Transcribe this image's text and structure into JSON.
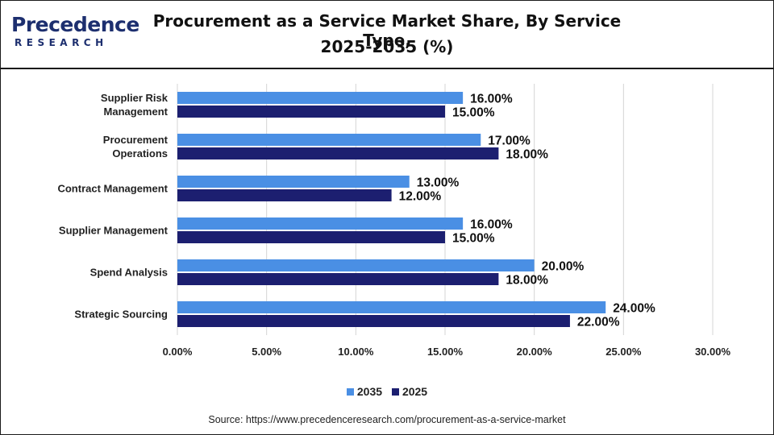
{
  "brand": {
    "name": "Precedence",
    "sub": "RESEARCH"
  },
  "title_line1": "Procurement as a Service Market Share, By Service Type,",
  "title_line2": "2025-2035 (%)",
  "source": "Source: https://www.precedenceresearch.com/procurement-as-a-service-market",
  "colors": {
    "series_2035": "#4a8fe4",
    "series_2025": "#1c1f70",
    "grid": "#d4d4d4",
    "text": "#222222"
  },
  "chart_data": {
    "type": "bar",
    "orientation": "horizontal",
    "categories": [
      [
        "Supplier Risk",
        "Management"
      ],
      [
        "Procurement",
        "Operations"
      ],
      [
        "Contract Management"
      ],
      [
        "Supplier Management"
      ],
      [
        "Spend Analysis"
      ],
      [
        "Strategic Sourcing"
      ]
    ],
    "series": [
      {
        "name": "2035",
        "values": [
          16,
          17,
          13,
          16,
          20,
          24
        ],
        "labels": [
          "16.00%",
          "17.00%",
          "13.00%",
          "16.00%",
          "20.00%",
          "24.00%"
        ]
      },
      {
        "name": "2025",
        "values": [
          15,
          18,
          12,
          15,
          18,
          22
        ],
        "labels": [
          "15.00%",
          "18.00%",
          "12.00%",
          "15.00%",
          "18.00%",
          "22.00%"
        ]
      }
    ],
    "xlim": [
      0,
      30
    ],
    "xticks": [
      0,
      5,
      10,
      15,
      20,
      25,
      30
    ],
    "xtick_labels": [
      "0.00%",
      "5.00%",
      "10.00%",
      "15.00%",
      "20.00%",
      "25.00%",
      "30.00%"
    ],
    "grid": true,
    "legend_position": "bottom"
  }
}
